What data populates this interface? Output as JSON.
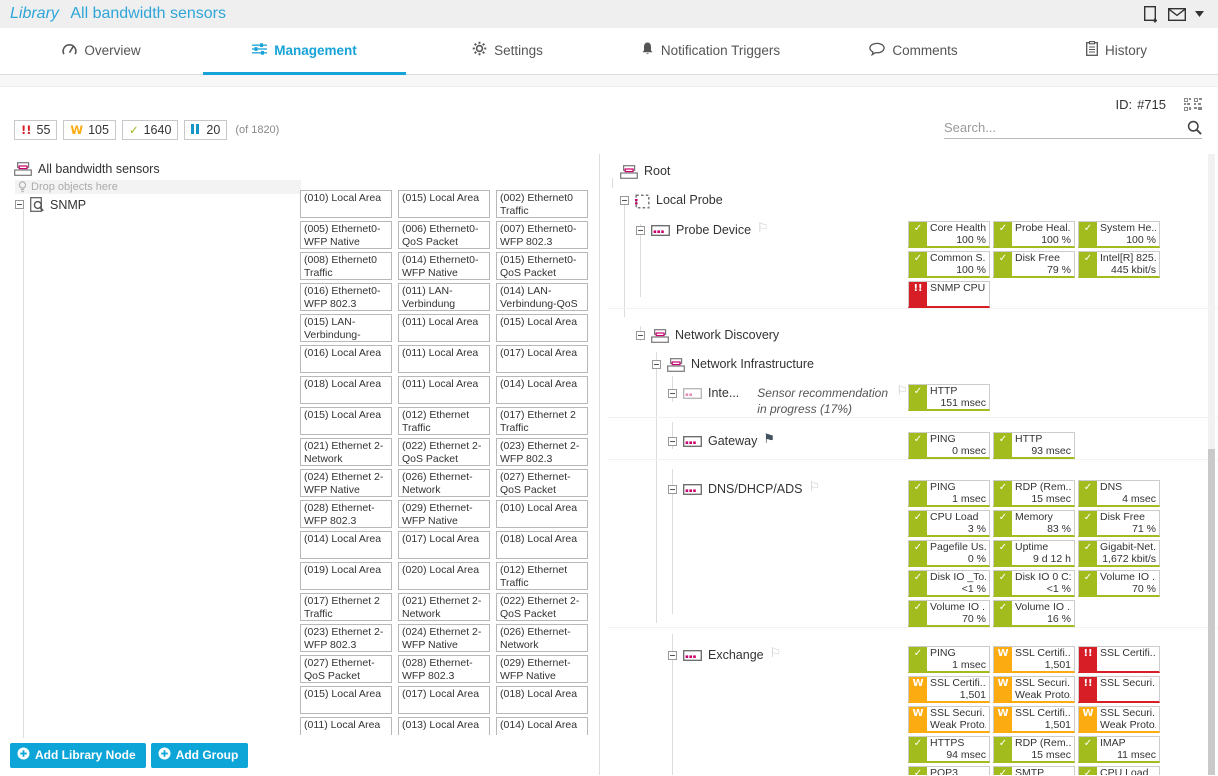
{
  "header": {
    "prefix": "Library",
    "title": "All bandwidth sensors"
  },
  "top_icons": [
    "document-add",
    "envelope",
    "caret-down"
  ],
  "tabs": [
    {
      "label": "Overview",
      "icon": "gauge",
      "active": false
    },
    {
      "label": "Management",
      "icon": "sliders",
      "active": true
    },
    {
      "label": "Settings",
      "icon": "gear",
      "active": false
    },
    {
      "label": "Notification Triggers",
      "icon": "bell",
      "active": false
    },
    {
      "label": "Comments",
      "icon": "comment",
      "active": false
    },
    {
      "label": "History",
      "icon": "history",
      "active": false
    }
  ],
  "toolbar": {
    "id_label": "ID:",
    "id_value": "#715",
    "id_icon": "qr-code",
    "search_placeholder": "Search...",
    "search_icon": "magnifier"
  },
  "status_summary": {
    "badges": [
      {
        "type": "error",
        "glyph": "!!",
        "count": "55"
      },
      {
        "type": "warning",
        "glyph": "W",
        "count": "105"
      },
      {
        "type": "ok",
        "glyph": "✓",
        "count": "1640"
      },
      {
        "type": "paused",
        "glyph": "II",
        "count": "20"
      }
    ],
    "total": "(of 1820)"
  },
  "library_panel": {
    "root_label": "All bandwidth sensors",
    "drop_hint": "Drop objects here",
    "group_label": "SNMP",
    "sensor_labels": [
      "(010) Local Area",
      "(015) Local Area",
      "(002) Ethernet0 Traffic",
      "(005) Ethernet0-WFP Native",
      "(006) Ethernet0-QoS Packet",
      "(007) Ethernet0-WFP 802.3",
      "(008) Ethernet0 Traffic",
      "(014) Ethernet0-WFP Native",
      "(015) Ethernet0-QoS Packet",
      "(016) Ethernet0-WFP 802.3",
      "(011) LAN-Verbindung",
      "(014) LAN-Verbindung-QoS",
      "(015) LAN-Verbindung-",
      "(011) Local Area",
      "(015) Local Area",
      "(016) Local Area",
      "(011) Local Area",
      "(017) Local Area",
      "(018) Local Area",
      "(011) Local Area",
      "(014) Local Area",
      "(015) Local Area",
      "(012) Ethernet Traffic",
      "(017) Ethernet 2 Traffic",
      "(021) Ethernet 2-Network",
      "(022) Ethernet 2-QoS Packet",
      "(023) Ethernet 2-WFP 802.3",
      "(024) Ethernet 2-WFP Native",
      "(026) Ethernet-Network",
      "(027) Ethernet-QoS Packet",
      "(028) Ethernet-WFP 802.3",
      "(029) Ethernet-WFP Native",
      "(010) Local Area",
      "(014) Local Area",
      "(017) Local Area",
      "(018) Local Area",
      "(019) Local Area",
      "(020) Local Area",
      "(012) Ethernet Traffic",
      "(017) Ethernet 2 Traffic",
      "(021) Ethernet 2-Network",
      "(022) Ethernet 2-QoS Packet",
      "(023) Ethernet 2-WFP 802.3",
      "(024) Ethernet 2-WFP Native",
      "(026) Ethernet-Network",
      "(027) Ethernet-QoS Packet",
      "(028) Ethernet-WFP 802.3",
      "(029) Ethernet-WFP Native",
      "(015) Local Area",
      "(017) Local Area",
      "(018) Local Area",
      "(011) Local Area",
      "(013) Local Area",
      "(014) Local Area"
    ]
  },
  "device_panel": {
    "rows": [
      {
        "slug": "root",
        "label": "Root",
        "depth": 0,
        "icon": "group",
        "expander": false,
        "flag": null,
        "sensors": []
      },
      {
        "slug": "local-probe",
        "label": "Local Probe",
        "depth": 1,
        "icon": "probe",
        "expander": true,
        "flag": null,
        "sensors": []
      },
      {
        "slug": "probe-device",
        "label": "Probe Device",
        "depth": 2,
        "icon": "device",
        "expander": true,
        "flag": "outline",
        "sensors": [
          {
            "status": "ok",
            "name": "Core Health",
            "value": "100 %"
          },
          {
            "status": "ok",
            "name": "Probe Heal...",
            "value": "100 %"
          },
          {
            "status": "ok",
            "name": "System He...",
            "value": "100 %"
          },
          {
            "status": "ok",
            "name": "Common S...",
            "value": "100 %"
          },
          {
            "status": "ok",
            "name": "Disk Free",
            "value": "79 %"
          },
          {
            "status": "ok",
            "name": "Intel[R] 825...",
            "value": "445 kbit/s"
          },
          {
            "status": "error",
            "name": "SNMP CPU...",
            "value": ""
          }
        ]
      },
      {
        "slug": "network-discovery",
        "label": "Network Discovery",
        "depth": 2,
        "icon": "group",
        "expander": true,
        "flag": null,
        "sensors": []
      },
      {
        "slug": "network-infrastructure",
        "label": "Network Infrastructure",
        "depth": 3,
        "icon": "group",
        "expander": true,
        "flag": null,
        "sensors": []
      },
      {
        "slug": "intel-device",
        "label": "Inte...",
        "depth": 4,
        "icon": "device_dim",
        "expander": true,
        "flag": "outline",
        "note": "Sensor recommendation in progress (17%)",
        "sensors": [
          {
            "status": "ok",
            "name": "HTTP",
            "value": "151 msec"
          }
        ]
      },
      {
        "slug": "gateway",
        "label": "Gateway",
        "depth": 4,
        "icon": "device",
        "expander": true,
        "flag": "filled",
        "sensors": [
          {
            "status": "ok",
            "name": "PING",
            "value": "0 msec"
          },
          {
            "status": "ok",
            "name": "HTTP",
            "value": "93 msec"
          }
        ]
      },
      {
        "slug": "dns-dhcp-ads",
        "label": "DNS/DHCP/ADS",
        "depth": 4,
        "icon": "device",
        "expander": true,
        "flag": "outline",
        "sensors": [
          {
            "status": "ok",
            "name": "PING",
            "value": "1 msec"
          },
          {
            "status": "ok",
            "name": "RDP (Rem...",
            "value": "15 msec"
          },
          {
            "status": "ok",
            "name": "DNS",
            "value": "4 msec"
          },
          {
            "status": "ok",
            "name": "CPU Load",
            "value": "3 %"
          },
          {
            "status": "ok",
            "name": "Memory",
            "value": "83 %"
          },
          {
            "status": "ok",
            "name": "Disk Free",
            "value": "71 %"
          },
          {
            "status": "ok",
            "name": "Pagefile Us...",
            "value": "0 %"
          },
          {
            "status": "ok",
            "name": "Uptime",
            "value": "9 d 12 h"
          },
          {
            "status": "ok",
            "name": "Gigabit-Net...",
            "value": "1,672 kbit/s"
          },
          {
            "status": "ok",
            "name": "Disk IO _To...",
            "value": "<1 %"
          },
          {
            "status": "ok",
            "name": "Disk IO 0 C:",
            "value": "<1 %"
          },
          {
            "status": "ok",
            "name": "Volume IO ...",
            "value": "70 %"
          },
          {
            "status": "ok",
            "name": "Volume IO ...",
            "value": "70 %"
          },
          {
            "status": "ok",
            "name": "Volume IO ...",
            "value": "16 %"
          }
        ]
      },
      {
        "slug": "exchange",
        "label": "Exchange",
        "depth": 4,
        "icon": "device",
        "expander": true,
        "flag": "outline",
        "sensors": [
          {
            "status": "ok",
            "name": "PING",
            "value": "1 msec"
          },
          {
            "status": "warn",
            "name": "SSL Certifi...",
            "value": "1,501"
          },
          {
            "status": "error",
            "name": "SSL Certifi...",
            "value": ""
          },
          {
            "status": "warn",
            "name": "SSL Certifi...",
            "value": "1,501"
          },
          {
            "status": "warn",
            "name": "SSL Securi...",
            "value": "Weak Proto..."
          },
          {
            "status": "error",
            "name": "SSL Securi...",
            "value": ""
          },
          {
            "status": "warn",
            "name": "SSL Securi...",
            "value": "Weak Proto..."
          },
          {
            "status": "warn",
            "name": "SSL Certifi...",
            "value": "1,501"
          },
          {
            "status": "warn",
            "name": "SSL Securi...",
            "value": "Weak Proto..."
          },
          {
            "status": "ok",
            "name": "HTTPS",
            "value": "94 msec"
          },
          {
            "status": "ok",
            "name": "RDP (Rem...",
            "value": "15 msec"
          },
          {
            "status": "ok",
            "name": "IMAP",
            "value": "11 msec"
          },
          {
            "status": "ok",
            "name": "POP3",
            "value": ""
          },
          {
            "status": "ok",
            "name": "SMTP",
            "value": ""
          },
          {
            "status": "ok",
            "name": "CPU Load",
            "value": ""
          }
        ]
      }
    ]
  },
  "footer": {
    "buttons": [
      "Add Library Node",
      "Add Group"
    ]
  },
  "colors": {
    "accent": "#17a2d8",
    "ok": "#a3bc1d",
    "warning": "#fcab10",
    "error": "#d71e26",
    "paused": "#1496c8",
    "device_accent": "#c9006b",
    "button": "#0da5d8"
  }
}
